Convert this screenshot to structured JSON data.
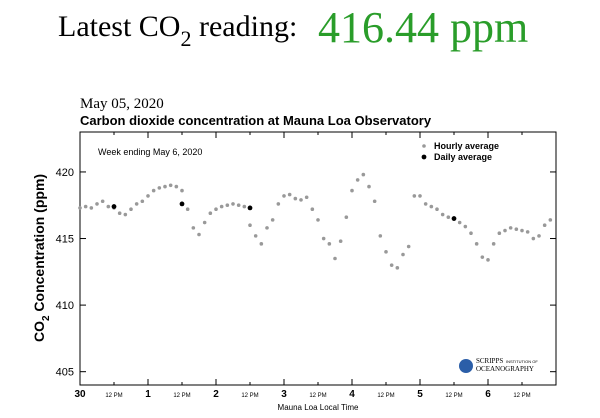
{
  "header": {
    "prefix": "Latest CO",
    "subscript": "2",
    "suffix": " reading:",
    "reading": "416.44 ppm"
  },
  "chart_data": {
    "type": "scatter",
    "date": "May 05, 2020",
    "title": "Carbon dioxide concentration at Mauna Loa Observatory",
    "annotation": "Week ending May 6, 2020",
    "xlabel": "Mauna Loa Local Time",
    "ylabel": {
      "prefix": "CO",
      "subscript": "2",
      "suffix": " Concentration (ppm)"
    },
    "logo": {
      "name": "SCRIPPS",
      "line1": "INSTITUTION OF",
      "line2": "OCEANOGRAPHY"
    },
    "legend": "upper right",
    "xlim": [
      0,
      168
    ],
    "ylim": [
      404,
      423
    ],
    "yticks": [
      405,
      410,
      415,
      420
    ],
    "xticks": [
      {
        "value": 0,
        "label": "30"
      },
      {
        "value": 12,
        "label": "12 PM"
      },
      {
        "value": 24,
        "label": "1"
      },
      {
        "value": 36,
        "label": "12 PM"
      },
      {
        "value": 48,
        "label": "2"
      },
      {
        "value": 60,
        "label": "12 PM"
      },
      {
        "value": 72,
        "label": "3"
      },
      {
        "value": 84,
        "label": "12 PM"
      },
      {
        "value": 96,
        "label": "4"
      },
      {
        "value": 108,
        "label": "12 PM"
      },
      {
        "value": 120,
        "label": "5"
      },
      {
        "value": 132,
        "label": "12 PM"
      },
      {
        "value": 144,
        "label": "6"
      },
      {
        "value": 156,
        "label": "12 PM"
      }
    ],
    "series": [
      {
        "name": "Hourly average",
        "color": "#999999",
        "x": [
          0,
          2,
          4,
          6,
          8,
          10,
          12,
          14,
          16,
          18,
          20,
          22,
          24,
          26,
          28,
          30,
          32,
          34,
          36,
          38,
          40,
          42,
          44,
          46,
          48,
          50,
          52,
          54,
          56,
          58,
          60,
          62,
          64,
          66,
          68,
          70,
          72,
          74,
          76,
          78,
          80,
          82,
          84,
          86,
          88,
          90,
          92,
          94,
          96,
          98,
          100,
          102,
          104,
          106,
          108,
          110,
          112,
          114,
          116,
          118,
          120,
          122,
          124,
          126,
          128,
          130,
          132,
          134,
          136,
          138,
          140,
          142,
          144,
          146,
          148,
          150,
          152,
          154,
          156,
          158,
          160,
          162,
          164,
          166
        ],
        "values": [
          417.3,
          417.4,
          417.3,
          417.6,
          417.8,
          417.4,
          417.3,
          416.9,
          416.8,
          417.2,
          417.6,
          417.8,
          418.2,
          418.6,
          418.8,
          418.9,
          419.0,
          418.9,
          418.6,
          417.2,
          415.8,
          415.3,
          416.2,
          416.9,
          417.2,
          417.4,
          417.5,
          417.6,
          417.5,
          417.4,
          416.0,
          415.2,
          414.6,
          415.8,
          416.4,
          417.6,
          418.2,
          418.3,
          418.0,
          417.9,
          418.1,
          417.2,
          416.4,
          415.0,
          414.6,
          413.5,
          414.8,
          416.6,
          418.6,
          419.4,
          419.8,
          418.9,
          417.8,
          415.2,
          414.0,
          413.0,
          412.8,
          413.8,
          414.4,
          418.2,
          418.2,
          417.6,
          417.4,
          417.2,
          416.8,
          416.6,
          416.5,
          416.2,
          415.9,
          415.4,
          414.6,
          413.6,
          413.4,
          414.6,
          415.4,
          415.6,
          415.8,
          415.7,
          415.6,
          415.5,
          415.0,
          415.2,
          416.0,
          416.4
        ]
      },
      {
        "name": "Daily average",
        "color": "#000000",
        "x": [
          12,
          36,
          60,
          132
        ],
        "values": [
          417.4,
          417.6,
          417.3,
          416.5
        ]
      }
    ]
  }
}
